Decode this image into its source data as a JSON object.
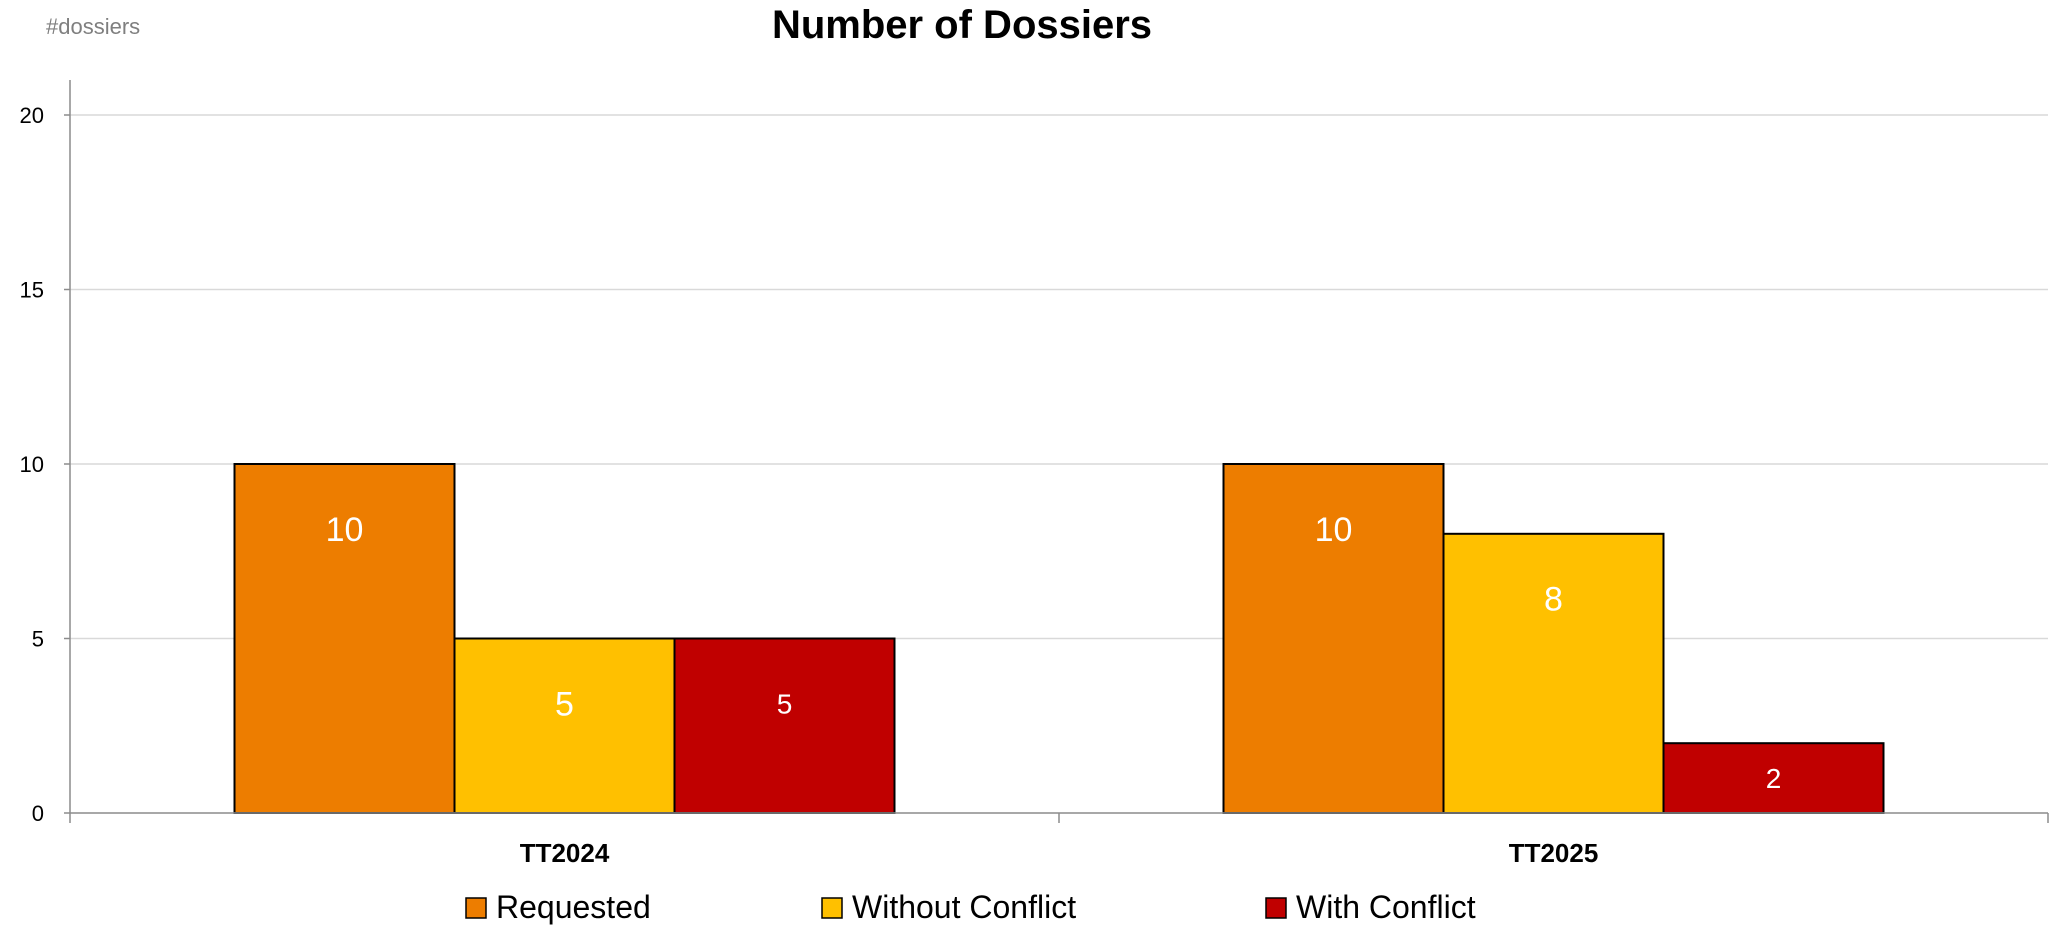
{
  "chart_data": {
    "type": "bar",
    "title": "Number of Dossiers",
    "ylabel": "#dossiers",
    "xlabel": "",
    "categories": [
      "TT2024",
      "TT2025"
    ],
    "ylim": [
      0,
      21
    ],
    "yticks": [
      0,
      5,
      10,
      15,
      20
    ],
    "grid": true,
    "legend_position": "bottom",
    "series": [
      {
        "name": "Requested",
        "values": [
          10,
          10
        ],
        "color": "#ED7D00"
      },
      {
        "name": "Without Conflict",
        "values": [
          5,
          8
        ],
        "color": "#FFC000"
      },
      {
        "name": "With Conflict",
        "values": [
          5,
          2
        ],
        "color": "#C00000"
      }
    ]
  }
}
